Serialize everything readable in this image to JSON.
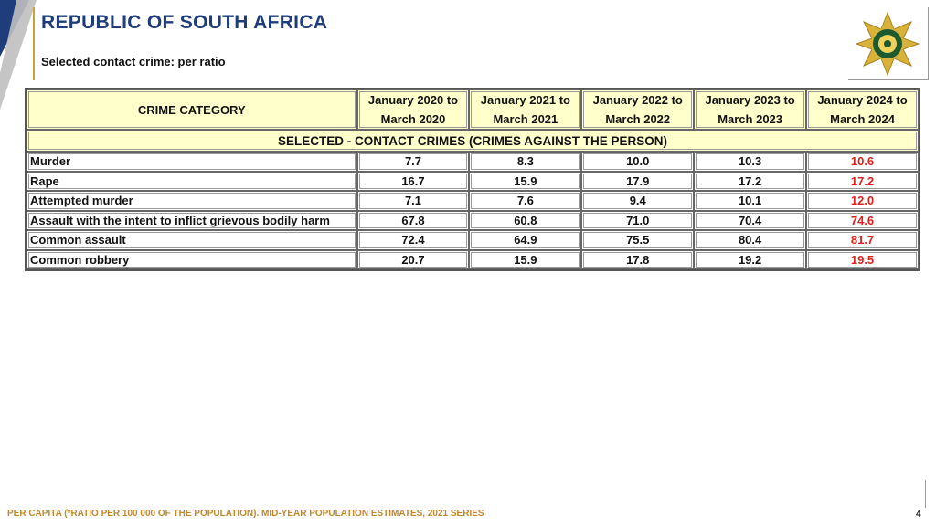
{
  "header": {
    "title": "REPUBLIC OF SOUTH AFRICA",
    "subtitle": "Selected contact crime: per ratio"
  },
  "logo": {
    "name": "saps-star-emblem-icon"
  },
  "table": {
    "category_header": "CRIME CATEGORY",
    "periods": [
      {
        "line1": "January 2020 to",
        "line2": "March 2020"
      },
      {
        "line1": "January 2021 to",
        "line2": "March 2021"
      },
      {
        "line1": "January 2022 to",
        "line2": "March 2022"
      },
      {
        "line1": "January 2023 to",
        "line2": "March 2023"
      },
      {
        "line1": "January 2024 to",
        "line2": "March 2024"
      }
    ],
    "section_label": "SELECTED - CONTACT CRIMES (CRIMES AGAINST THE  PERSON)",
    "rows": [
      {
        "label": "Murder",
        "values": [
          "7.7",
          "8.3",
          "10.0",
          "10.3",
          "10.6"
        ]
      },
      {
        "label": "Rape",
        "values": [
          "16.7",
          "15.9",
          "17.9",
          "17.2",
          "17.2"
        ]
      },
      {
        "label": "Attempted murder",
        "values": [
          "7.1",
          "7.6",
          "9.4",
          "10.1",
          "12.0"
        ]
      },
      {
        "label": "Assault with the intent to inflict grievous bodily harm",
        "values": [
          "67.8",
          "60.8",
          "71.0",
          "70.4",
          "74.6"
        ]
      },
      {
        "label": "Common assault",
        "values": [
          "72.4",
          "64.9",
          "75.5",
          "80.4",
          "81.7"
        ]
      },
      {
        "label": "Common robbery",
        "values": [
          "20.7",
          "15.9",
          "17.8",
          "19.2",
          "19.5"
        ]
      }
    ],
    "highlight_color": "#e0201b",
    "header_fill": "#ffffcc"
  },
  "footer": {
    "note": "PER CAPITA (*RATIO PER 100 000 OF THE POPULATION). MID-YEAR POPULATION ESTIMATES, 2021 SERIES",
    "page_number": "4"
  },
  "colors": {
    "title": "#1f3d7a",
    "accent_gold": "#c9a13b",
    "footnote": "#c0882a"
  }
}
